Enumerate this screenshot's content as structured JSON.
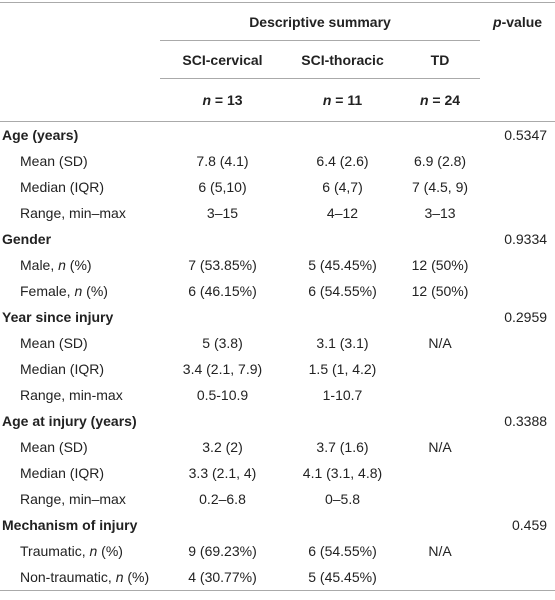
{
  "header": {
    "group": "Descriptive summary",
    "p_value": [
      {
        "text": "p",
        "italic": true
      },
      {
        "text": "-value"
      }
    ],
    "columns": [
      "SCI-cervical",
      "SCI-thoracic",
      "TD"
    ],
    "n": [
      [
        {
          "text": "n",
          "italic": true
        },
        {
          "text": " = 13"
        }
      ],
      [
        {
          "text": "n",
          "italic": true
        },
        {
          "text": " = 11"
        }
      ],
      [
        {
          "text": "n",
          "italic": true
        },
        {
          "text": " = 24"
        }
      ]
    ]
  },
  "sections": [
    {
      "title": "Age (years)",
      "p_value": "0.5347",
      "rows": [
        {
          "label": [
            {
              "text": "Mean (SD)"
            }
          ],
          "values": [
            "7.8 (4.1)",
            "6.4 (2.6)",
            "6.9 (2.8)"
          ]
        },
        {
          "label": [
            {
              "text": "Median (IQR)"
            }
          ],
          "values": [
            "6 (5,10)",
            "6 (4,7)",
            "7 (4.5, 9)"
          ]
        },
        {
          "label": [
            {
              "text": "Range, min–max"
            }
          ],
          "values": [
            "3–15",
            "4–12",
            "3–13"
          ]
        }
      ]
    },
    {
      "title": "Gender",
      "p_value": "0.9334",
      "rows": [
        {
          "label": [
            {
              "text": "Male, "
            },
            {
              "text": "n",
              "italic": true
            },
            {
              "text": " (%)"
            }
          ],
          "values": [
            "7 (53.85%)",
            "5 (45.45%)",
            "12 (50%)"
          ]
        },
        {
          "label": [
            {
              "text": "Female, "
            },
            {
              "text": "n",
              "italic": true
            },
            {
              "text": " (%)"
            }
          ],
          "values": [
            "6 (46.15%)",
            "6 (54.55%)",
            "12 (50%)"
          ]
        }
      ]
    },
    {
      "title": "Year since injury",
      "p_value": "0.2959",
      "rows": [
        {
          "label": [
            {
              "text": "Mean (SD)"
            }
          ],
          "values": [
            "5 (3.8)",
            "3.1 (3.1)",
            "N/A"
          ]
        },
        {
          "label": [
            {
              "text": "Median (IQR)"
            }
          ],
          "values": [
            "3.4 (2.1, 7.9)",
            "1.5 (1, 4.2)",
            null
          ]
        },
        {
          "label": [
            {
              "text": "Range, min-max"
            }
          ],
          "values": [
            "0.5-10.9",
            "1-10.7",
            null
          ]
        }
      ]
    },
    {
      "title": "Age at injury (years)",
      "p_value": "0.3388",
      "rows": [
        {
          "label": [
            {
              "text": "Mean (SD)"
            }
          ],
          "values": [
            "3.2 (2)",
            "3.7 (1.6)",
            "N/A"
          ]
        },
        {
          "label": [
            {
              "text": "Median (IQR)"
            }
          ],
          "values": [
            "3.3 (2.1, 4)",
            "4.1 (3.1, 4.8)",
            null
          ]
        },
        {
          "label": [
            {
              "text": "Range, min–max"
            }
          ],
          "values": [
            "0.2–6.8",
            "0–5.8",
            null
          ]
        }
      ]
    },
    {
      "title": "Mechanism of injury",
      "p_value": "0.459",
      "rows": [
        {
          "label": [
            {
              "text": "Traumatic, "
            },
            {
              "text": "n",
              "italic": true
            },
            {
              "text": " (%)"
            }
          ],
          "values": [
            "9 (69.23%)",
            "6 (54.55%)",
            "N/A"
          ]
        },
        {
          "label": [
            {
              "text": "Non-traumatic, "
            },
            {
              "text": "n",
              "italic": true
            },
            {
              "text": " (%)"
            }
          ],
          "values": [
            "4 (30.77%)",
            "5 (45.45%)",
            null
          ]
        }
      ]
    }
  ]
}
